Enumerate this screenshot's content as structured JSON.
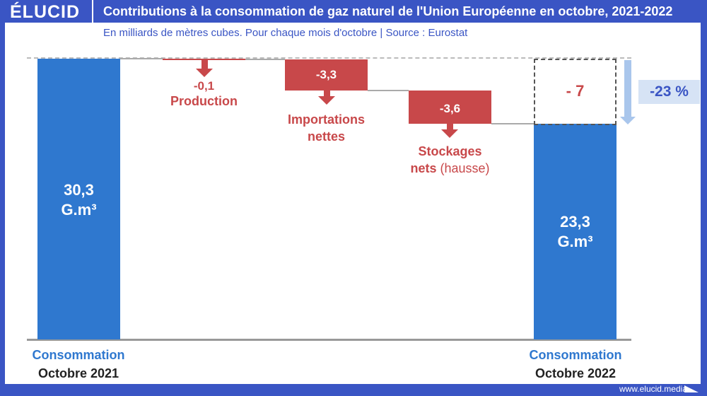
{
  "header": {
    "logo": "ÉLUCID",
    "title": "Contributions à la consommation de gaz naturel de l'Union Européenne en octobre, 2021-2022",
    "subtitle": "En milliards de mètres cubes. Pour chaque mois d'octobre  |  Source : Eurostat"
  },
  "footer": {
    "url": "www.elucid.media"
  },
  "colors": {
    "frame": "#3a55c4",
    "bar": "#2f78cf",
    "negative": "#c8484a",
    "badge_bg": "#d6e3f5"
  },
  "chart_data": {
    "type": "waterfall",
    "unit": "G.m³",
    "steps": [
      {
        "label": "Consommation",
        "sublabel": "Octobre 2021",
        "value": 30.3,
        "value_label": "30,3",
        "unit_label": "G.m³",
        "kind": "total"
      },
      {
        "label": "Production",
        "value": -0.1,
        "value_label": "-0,1",
        "kind": "delta"
      },
      {
        "label": "Importations nettes",
        "label_line1": "Importations",
        "label_line2": "nettes",
        "value": -3.3,
        "value_label": "-3,3",
        "kind": "delta"
      },
      {
        "label": "Stockages nets (hausse)",
        "label_line1": "Stockages",
        "label_line2a": "nets",
        "label_line2b": " (hausse)",
        "value": -3.6,
        "value_label": "-3,6",
        "kind": "delta"
      },
      {
        "label": "Consommation",
        "sublabel": "Octobre 2022",
        "value": 23.3,
        "value_label": "23,3",
        "unit_label": "G.m³",
        "kind": "total"
      }
    ],
    "total_change": {
      "value": -7,
      "label": "- 7",
      "percent_label": "-23 %"
    },
    "ylim": [
      0,
      30.3
    ]
  }
}
